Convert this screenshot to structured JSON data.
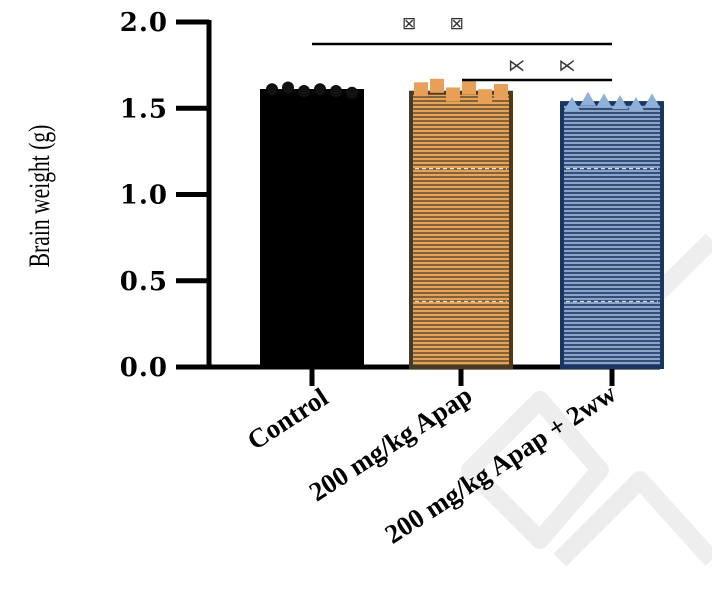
{
  "chart_data": {
    "type": "bar",
    "ylabel": "Brain weight (g)",
    "xlabel": "",
    "ylim": [
      0,
      2.0
    ],
    "yticks": [
      "0.0",
      "0.5",
      "1.0",
      "1.5",
      "2.0"
    ],
    "ytick_values": [
      0,
      0.5,
      1.0,
      1.5,
      2.0
    ],
    "categories": [
      "Control",
      "200 mg/kg Apap",
      "200 mg/kg Apap + 2ww"
    ],
    "values": [
      1.6,
      1.59,
      1.53
    ],
    "points": [
      [
        1.61,
        1.62,
        1.6,
        1.61,
        1.6,
        1.59
      ],
      [
        1.61,
        1.63,
        1.58,
        1.62,
        1.57,
        1.6
      ],
      [
        1.52,
        1.55,
        1.54,
        1.53,
        1.52,
        1.54
      ]
    ],
    "point_markers": [
      "circle",
      "square",
      "triangle"
    ],
    "colors": [
      "#000000",
      "#e5a45c",
      "#1e3f6e"
    ],
    "edge_colors": [
      "#000000",
      "#4a3a22",
      "#1a3562"
    ],
    "point_colors": [
      "#111111",
      "#e8a058",
      "#8fb0d8"
    ],
    "significance": [
      {
        "from": 0,
        "to": 2,
        "label": "**"
      },
      {
        "from": 1,
        "to": 2,
        "label": "**"
      }
    ]
  },
  "annotations": {
    "sig_top": "⊠ ⊠",
    "sig_bottom": "⋉ ⋉"
  }
}
